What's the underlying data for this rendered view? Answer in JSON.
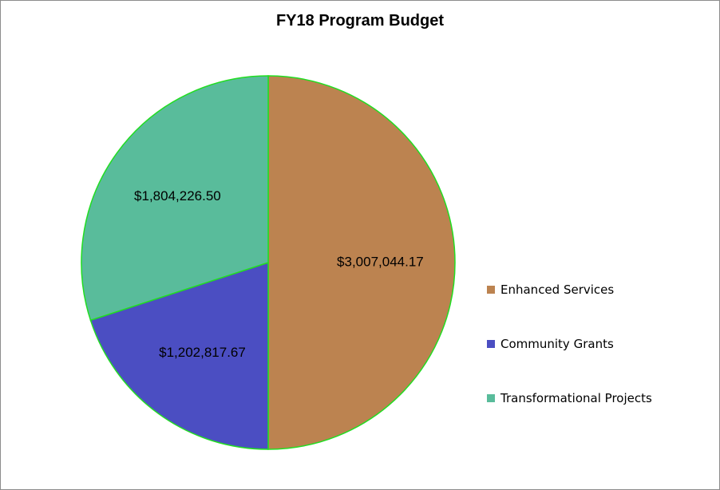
{
  "chart_data": {
    "type": "pie",
    "title": "FY18 Program Budget",
    "slices": [
      {
        "label": "Enhanced Services",
        "value": 3007044.17,
        "display": "$3,007,044.17",
        "color": "#BC8350"
      },
      {
        "label": "Community Grants",
        "value": 1202817.67,
        "display": "$1,202,817.67",
        "color": "#4B4EC2"
      },
      {
        "label": "Transformational Projects",
        "value": 1804226.5,
        "display": "$1,804,226.50",
        "color": "#59BC9B"
      }
    ],
    "start": "12 o'clock",
    "direction": "clockwise",
    "slice_border_color": "#22DD22",
    "legend_position": "right"
  }
}
